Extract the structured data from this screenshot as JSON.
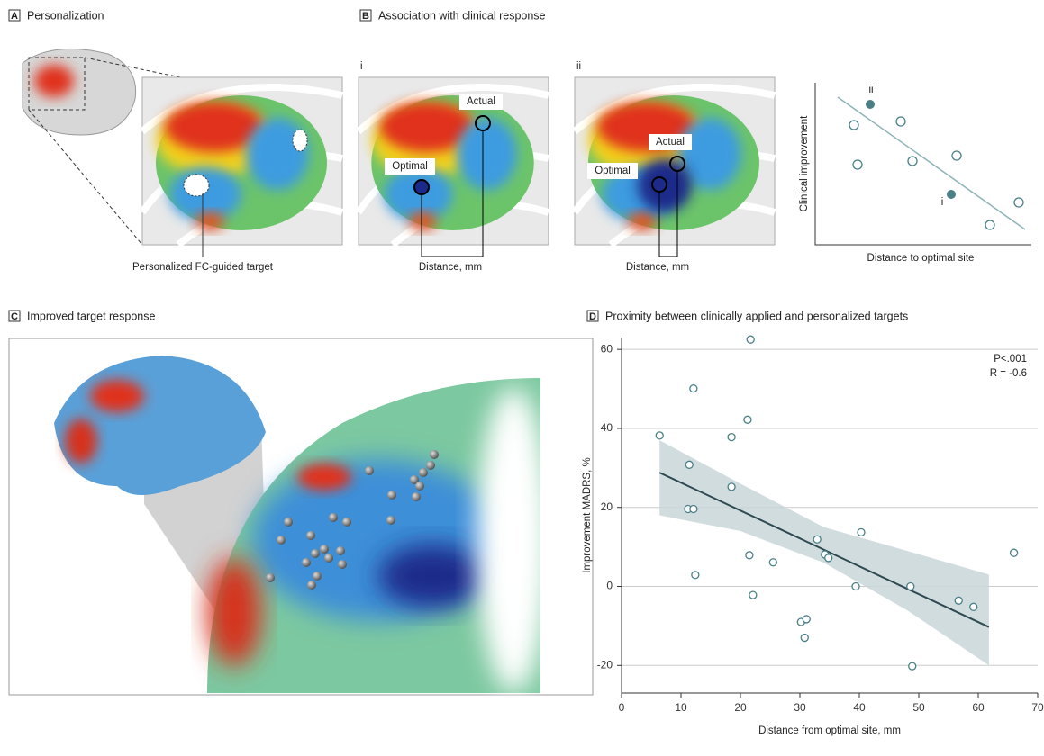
{
  "panels": [
    {
      "letter": "A",
      "title": "Personalization",
      "caption": "Personalized FC-guided target"
    },
    {
      "letter": "B",
      "title": "Association with clinical response",
      "sub": [
        {
          "label": "i",
          "actual": "Actual",
          "optimal": "Optimal",
          "caption": "Distance, mm"
        },
        {
          "label": "ii",
          "actual": "Actual",
          "optimal": "Optimal",
          "caption": "Distance, mm"
        }
      ],
      "schematic": {
        "ylabel": "Clinical improvement",
        "xlabel": "Distance to optimal site",
        "point_labels": [
          "ii",
          "i"
        ]
      }
    },
    {
      "letter": "C",
      "title": "Improved target response"
    },
    {
      "letter": "D",
      "title": "Proximity between clinically applied and personalized targets"
    }
  ],
  "chart_data": {
    "type": "scatter",
    "xlabel": "Distance from optimal site, mm",
    "ylabel": "Improvement MADRS, %",
    "annotations": [
      "P<.001",
      "R = -0.6"
    ],
    "x": [
      6.4,
      12.1,
      21.7,
      11.4,
      21.2,
      18.5,
      18.5,
      11.2,
      12.1,
      12.4,
      21.5,
      22.1,
      25.5,
      32.9,
      34.2,
      34.8,
      40.3,
      39.4,
      48.6,
      48.9,
      30.2,
      31.1,
      30.8,
      56.7,
      59.2,
      66
    ],
    "values": [
      38.2,
      50.1,
      62.5,
      30.8,
      42.2,
      37.8,
      25.2,
      19.6,
      19.6,
      2.9,
      7.9,
      -2.2,
      6.1,
      11.9,
      8.1,
      7.2,
      13.7,
      0,
      0,
      -20.2,
      -9,
      -8.3,
      -13,
      -3.6,
      -5.2,
      8.5
    ],
    "color": "#4a7f86",
    "fit": {
      "x": [
        6.4,
        61.8
      ],
      "y": [
        28.8,
        -10.3
      ],
      "color": "#2e4a50"
    },
    "band": {
      "x": [
        6.4,
        20,
        34,
        48,
        61.8
      ],
      "upper": [
        37,
        26,
        15,
        9,
        3
      ],
      "lower": [
        18,
        14,
        6,
        -6,
        -20
      ],
      "color": "#c9d6d9"
    },
    "xlim": [
      0,
      70
    ],
    "xticks": [
      0,
      10,
      20,
      30,
      40,
      50,
      60,
      70
    ],
    "ylim": [
      -27,
      63
    ],
    "yticks": [
      -20,
      0,
      20,
      40,
      60
    ],
    "grid": true
  }
}
